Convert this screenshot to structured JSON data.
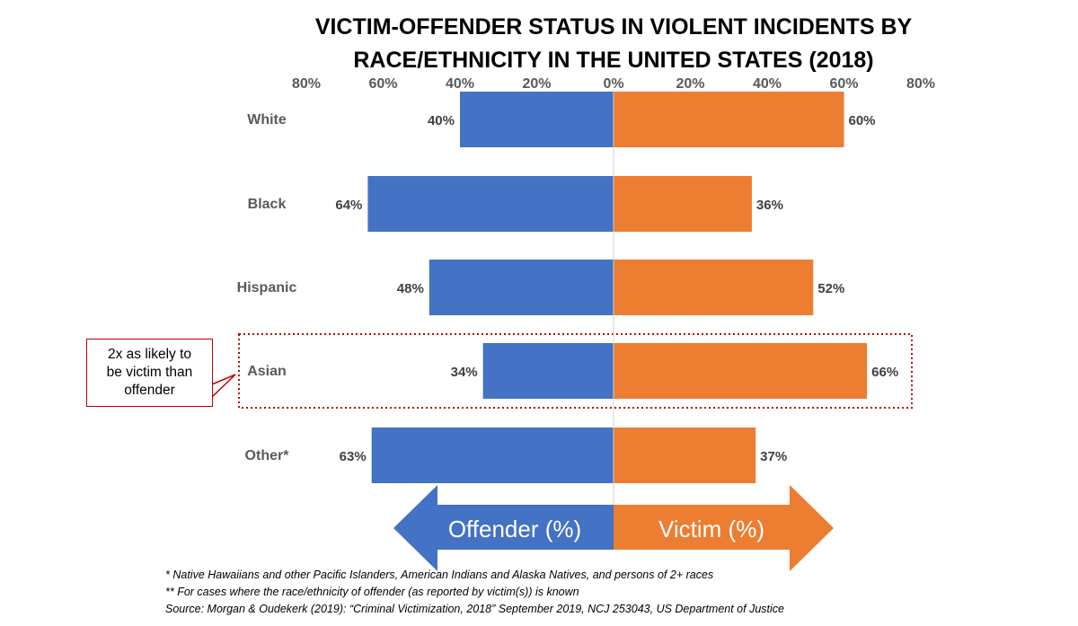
{
  "chart_data": {
    "type": "bar",
    "orientation": "diverging-horizontal",
    "title_lines": [
      "VICTIM-OFFENDER STATUS IN VIOLENT INCIDENTS BY",
      "RACE/ETHNICITY IN THE UNITED STATES (2018)"
    ],
    "categories": [
      "White",
      "Black",
      "Hispanic",
      "Asian",
      "Other*"
    ],
    "series": [
      {
        "name": "Offender (%)",
        "values": [
          40,
          64,
          48,
          34,
          63
        ],
        "labels": [
          "40%",
          "64%",
          "48%",
          "34%",
          "63%"
        ],
        "direction": "left",
        "color": "#4472c4"
      },
      {
        "name": "Victim (%)",
        "values": [
          60,
          36,
          52,
          66,
          37
        ],
        "labels": [
          "60%",
          "36%",
          "52%",
          "66%",
          "37%"
        ],
        "direction": "right",
        "color": "#ed7d31"
      }
    ],
    "xlim": [
      -80,
      80
    ],
    "tick_labels": [
      "80%",
      "60%",
      "40%",
      "20%",
      "0%",
      "20%",
      "40%",
      "60%",
      "80%"
    ],
    "tick_values": [
      -80,
      -60,
      -40,
      -20,
      0,
      20,
      40,
      60,
      80
    ],
    "highlight": {
      "category": "Asian",
      "border_color": "#c00000"
    },
    "callout": {
      "lines": [
        "2x as likely to",
        "be victim than",
        "offender"
      ]
    },
    "arrows": {
      "left_label": "Offender (%)",
      "right_label": "Victim (%)"
    },
    "notes": [
      "* Native Hawaiians and other Pacific Islanders, American Indians and Alaska Natives, and persons of 2+ races",
      "** For cases where the race/ethnicity of offender (as reported by victim(s)) is known",
      "Source: Morgan & Oudekerk (2019): “Criminal Victimization, 2018”  September 2019, NCJ 253043, US Department of Justice"
    ]
  }
}
